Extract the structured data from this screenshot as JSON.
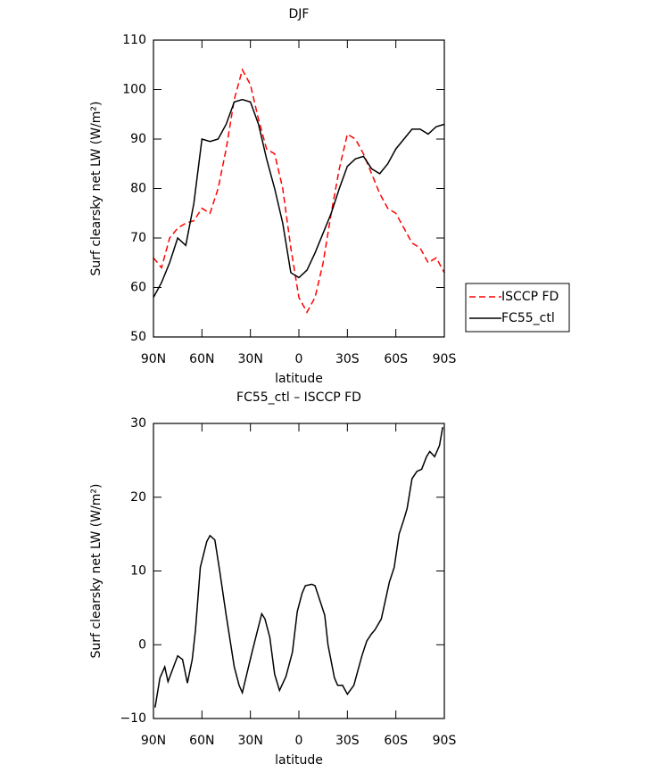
{
  "chart_data": [
    {
      "type": "line",
      "title": "DJF",
      "xlabel": "latitude",
      "ylabel": "Surf clearsky net LW (W/m²)",
      "xlim": [
        90,
        -90
      ],
      "ylim": [
        50,
        110
      ],
      "xticks": [
        {
          "value": 90,
          "label": "90N"
        },
        {
          "value": 60,
          "label": "60N"
        },
        {
          "value": 30,
          "label": "30N"
        },
        0,
        {
          "value": -30,
          "label": "30S"
        },
        {
          "value": -60,
          "label": "60S"
        },
        {
          "value": -90,
          "label": "90S"
        }
      ],
      "yticks": [
        50,
        60,
        70,
        80,
        90,
        100,
        110
      ],
      "legend": "right",
      "x": [
        90,
        85,
        80,
        75,
        70,
        65,
        60,
        55,
        50,
        45,
        40,
        35,
        30,
        25,
        20,
        15,
        10,
        5,
        0,
        -5,
        -10,
        -15,
        -20,
        -25,
        -30,
        -35,
        -40,
        -45,
        -50,
        -55,
        -60,
        -65,
        -70,
        -75,
        -80,
        -85,
        -90
      ],
      "series": [
        {
          "name": "ISCCP FD",
          "color": "#ff0000",
          "dash": true,
          "values": [
            66,
            64,
            70,
            72,
            73,
            73.5,
            76,
            75,
            80,
            88,
            98,
            104,
            101,
            94,
            88,
            87,
            80,
            68,
            58,
            55,
            58,
            65,
            75,
            84,
            91,
            90,
            87,
            83,
            79,
            76,
            75,
            72,
            69,
            68,
            65,
            66,
            63
          ]
        },
        {
          "name": "FC55_ctl",
          "color": "#000000",
          "dash": false,
          "values": [
            58,
            61,
            65,
            70,
            68.5,
            77,
            90,
            89.5,
            90,
            93,
            97.5,
            98,
            97.5,
            93,
            86,
            80,
            73,
            63,
            62,
            63.5,
            67,
            71,
            75,
            80,
            84.5,
            86,
            86.5,
            84,
            83,
            85,
            88,
            90,
            92,
            92,
            91,
            92.5,
            93
          ]
        }
      ]
    },
    {
      "type": "line",
      "title": "FC55_ctl – ISCCP FD",
      "xlabel": "latitude",
      "ylabel": "Surf clearsky net LW (W/m²)",
      "xlim": [
        90,
        -90
      ],
      "ylim": [
        -10,
        30
      ],
      "xticks": [
        {
          "value": 90,
          "label": "90N"
        },
        {
          "value": 60,
          "label": "60N"
        },
        {
          "value": 30,
          "label": "30N"
        },
        0,
        {
          "value": -30,
          "label": "30S"
        },
        {
          "value": -60,
          "label": "60S"
        },
        {
          "value": -90,
          "label": "90S"
        }
      ],
      "yticks": [
        {
          "value": -10,
          "label": "−10"
        },
        0,
        10,
        20,
        30
      ],
      "x": [
        89,
        86,
        83,
        81,
        75,
        72,
        69,
        66,
        64,
        61,
        57,
        55,
        52,
        49,
        45,
        40,
        37,
        35,
        29,
        23,
        21,
        18,
        15,
        12,
        8,
        4,
        1,
        -2,
        -4,
        -8,
        -10,
        -13,
        -16,
        -18,
        -22,
        -24,
        -27,
        -30,
        -34,
        -39,
        -42,
        -45,
        -47,
        -51,
        -56,
        -59,
        -62,
        -65,
        -67,
        -70,
        -73,
        -76,
        -79,
        -81,
        -84,
        -87,
        -89
      ],
      "series": [
        {
          "color": "#000000",
          "dash": false,
          "values": [
            -8.5,
            -4.5,
            -3,
            -5,
            -1.5,
            -2,
            -5.2,
            -2,
            2,
            10.5,
            14,
            14.8,
            14.2,
            10,
            4,
            -3,
            -5.5,
            -6.5,
            -1,
            4.2,
            3.5,
            1,
            -4,
            -6.2,
            -4.3,
            -1,
            4.5,
            7,
            8,
            8.2,
            8,
            6,
            4,
            0,
            -4.5,
            -5.5,
            -5.5,
            -6.7,
            -5.5,
            -1.5,
            0.5,
            1.5,
            2,
            3.5,
            8.5,
            10.5,
            15,
            17,
            18.5,
            22.5,
            23.5,
            23.8,
            25.5,
            26.2,
            25.5,
            27,
            29.5
          ]
        }
      ]
    }
  ]
}
